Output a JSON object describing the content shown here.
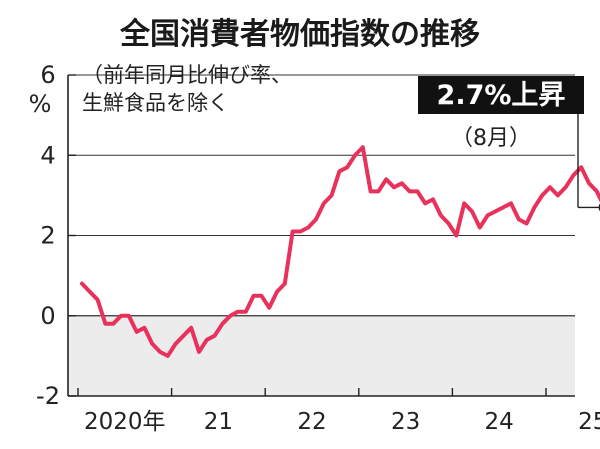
{
  "chart_data": {
    "type": "line",
    "title": "全国消費者物価指数の推移",
    "ylabel": "%",
    "ylabel_note": [
      "（前年同月比伸び率、",
      "生鮮食品を除く"
    ],
    "ylim": [
      -2,
      6
    ],
    "yticks": [
      -2,
      0,
      2,
      4,
      6
    ],
    "ytick_labels": [
      "-2",
      "0",
      "2",
      "4",
      "6"
    ],
    "x_start": "2020-01",
    "x_end": "2025-08",
    "xticks": [
      {
        "year": 2020,
        "label": "2020年"
      },
      {
        "year": 2021,
        "label": "21"
      },
      {
        "year": 2022,
        "label": "22"
      },
      {
        "year": 2023,
        "label": "23"
      },
      {
        "year": 2024,
        "label": "24"
      },
      {
        "year": 2025,
        "label": "25"
      }
    ],
    "negative_shading": true,
    "line_color": "#e8315b",
    "shade_color": "#ececec",
    "series": [
      {
        "values": [
          0.8,
          0.6,
          0.4,
          -0.2,
          -0.2,
          0.0,
          0.0,
          -0.4,
          -0.3,
          -0.7,
          -0.9,
          -1.0,
          -0.7,
          -0.5,
          -0.3,
          -0.9,
          -0.6,
          -0.5,
          -0.2,
          0.0,
          0.1,
          0.1,
          0.5,
          0.5,
          0.2,
          0.6,
          0.8,
          2.1,
          2.1,
          2.2,
          2.4,
          2.8,
          3.0,
          3.6,
          3.7,
          4.0,
          4.2,
          3.1,
          3.1,
          3.4,
          3.2,
          3.3,
          3.1,
          3.1,
          2.8,
          2.9,
          2.5,
          2.3,
          2.0,
          2.8,
          2.6,
          2.2,
          2.5,
          2.6,
          2.7,
          2.8,
          2.4,
          2.3,
          2.7,
          3.0,
          3.2,
          3.0,
          3.2,
          3.5,
          3.7,
          3.3,
          3.1,
          2.7
        ]
      }
    ],
    "callout": {
      "text": "2.7%上昇",
      "sub": "（8月）"
    }
  }
}
